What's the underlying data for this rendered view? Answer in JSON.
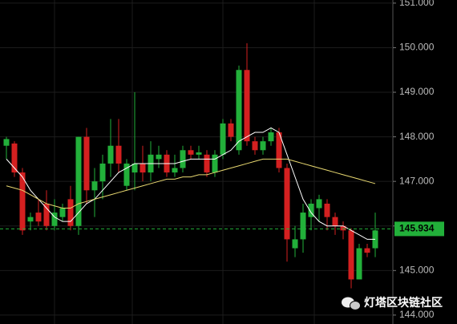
{
  "chart_data": {
    "type": "candlestick",
    "open": [
      147.8,
      147.85,
      147.2,
      146.1,
      146.3,
      146.5,
      146.0,
      146.2,
      146.6,
      146.0,
      148.0,
      146.8,
      147.0,
      147.4,
      147.8,
      146.9,
      147.2,
      147.4,
      147.2,
      147.5,
      147.6,
      147.2,
      147.3,
      147.7,
      147.6,
      147.6,
      147.2,
      147.6,
      148.3,
      147.7,
      149.5,
      147.9,
      147.7,
      147.9,
      148.1,
      147.3,
      145.5,
      145.7,
      146.2,
      146.4,
      146.5,
      146.2,
      146.0,
      145.9,
      144.8,
      145.5,
      145.5
    ],
    "high": [
      148.0,
      147.9,
      147.3,
      146.3,
      146.6,
      146.8,
      146.6,
      146.5,
      146.9,
      148.0,
      148.2,
      147.3,
      147.6,
      148.4,
      148.4,
      147.5,
      149.0,
      147.8,
      147.9,
      147.8,
      147.7,
      147.6,
      147.8,
      147.8,
      147.8,
      147.7,
      147.7,
      148.4,
      148.4,
      149.6,
      150.1,
      148.0,
      148.0,
      148.2,
      148.2,
      147.4,
      146.0,
      146.5,
      146.6,
      146.7,
      146.6,
      146.3,
      146.1,
      145.95,
      145.6,
      145.6,
      146.3
    ],
    "low": [
      147.5,
      147.1,
      145.8,
      145.9,
      146.0,
      145.9,
      145.9,
      146.1,
      145.9,
      145.8,
      146.5,
      146.2,
      146.6,
      147.1,
      147.2,
      146.8,
      146.8,
      147.0,
      147.0,
      147.3,
      147.1,
      147.1,
      147.2,
      147.5,
      147.5,
      147.1,
      147.1,
      147.5,
      147.9,
      147.6,
      147.8,
      147.6,
      147.6,
      147.8,
      147.2,
      145.2,
      145.3,
      145.4,
      145.9,
      146.1,
      145.9,
      145.8,
      145.7,
      144.6,
      144.8,
      145.3,
      145.3
    ],
    "close": [
      147.95,
      147.2,
      145.9,
      146.2,
      146.1,
      146.0,
      146.3,
      146.4,
      146.0,
      148.0,
      146.8,
      147.0,
      147.4,
      147.8,
      147.4,
      147.4,
      147.4,
      147.2,
      147.6,
      147.6,
      147.2,
      147.3,
      147.7,
      147.6,
      147.65,
      147.2,
      147.6,
      148.3,
      148.0,
      149.5,
      147.9,
      147.7,
      147.9,
      148.1,
      147.3,
      145.7,
      145.7,
      146.3,
      146.5,
      146.6,
      146.2,
      146.0,
      145.9,
      144.8,
      145.5,
      145.4,
      145.9
    ],
    "up_color": "#22b03a",
    "down_color": "#d42020",
    "series": [
      {
        "color": "#ffffff",
        "values": [
          147.5,
          147.3,
          147.1,
          146.8,
          146.6,
          146.4,
          146.2,
          146.1,
          146.1,
          146.3,
          146.5,
          146.6,
          146.8,
          147.0,
          147.2,
          147.3,
          147.4,
          147.4,
          147.4,
          147.4,
          147.4,
          147.4,
          147.45,
          147.5,
          147.5,
          147.5,
          147.5,
          147.6,
          147.7,
          147.9,
          148.0,
          148.1,
          148.1,
          148.2,
          148.1,
          147.6,
          147.1,
          146.6,
          146.3,
          146.1,
          146.0,
          146.0,
          146.0,
          145.9,
          145.8,
          145.7,
          145.7
        ]
      },
      {
        "color": "#e8d870",
        "values": [
          146.9,
          146.85,
          146.8,
          146.7,
          146.6,
          146.5,
          146.45,
          146.4,
          146.4,
          146.5,
          146.55,
          146.6,
          146.65,
          146.7,
          146.75,
          146.8,
          146.85,
          146.9,
          146.95,
          147.0,
          147.05,
          147.05,
          147.1,
          147.1,
          147.15,
          147.15,
          147.2,
          147.25,
          147.3,
          147.35,
          147.4,
          147.45,
          147.5,
          147.5,
          147.5,
          147.5,
          147.45,
          147.4,
          147.35,
          147.3,
          147.25,
          147.2,
          147.15,
          147.1,
          147.05,
          147.0,
          146.95
        ]
      }
    ],
    "ylim": [
      143.8,
      151.07
    ],
    "yticks": [
      {
        "value": 151,
        "label": "151.000"
      },
      {
        "value": 150,
        "label": "150.000"
      },
      {
        "value": 149,
        "label": "149.000"
      },
      {
        "value": 148,
        "label": "148.000"
      },
      {
        "value": 147,
        "label": "147.000"
      },
      {
        "value": 146,
        "label": "146.000"
      },
      {
        "value": 145,
        "label": "145.000"
      },
      {
        "value": 144,
        "label": "144.000"
      }
    ],
    "grid": true,
    "last_price": 145.934,
    "last_price_color": "#22b03a",
    "watermark": "灯塔区块链社区"
  }
}
